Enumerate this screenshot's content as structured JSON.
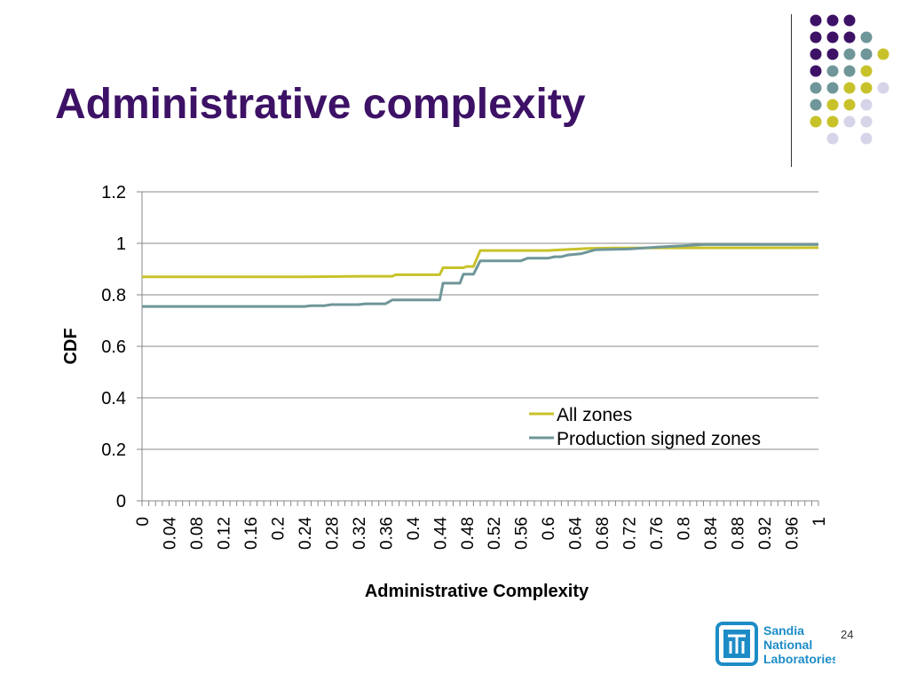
{
  "slide": {
    "title": "Administrative complexity",
    "page_number": "24",
    "logo_lines": [
      "Sandia",
      "National",
      "Laboratories"
    ]
  },
  "colors": {
    "title": "#3d1266",
    "all_zones": "#c8c22a",
    "production": "#6f9699",
    "grid": "#888888",
    "dot_purple": "#3d1266",
    "dot_teal": "#6f9699",
    "dot_yellow": "#c8c22a",
    "dot_lavender": "#d6d4e8",
    "logo_blue": "#1d8cc6"
  },
  "dot_grid": [
    [
      "purple",
      "purple",
      "purple",
      null,
      null
    ],
    [
      "purple",
      "purple",
      "purple",
      "teal",
      null
    ],
    [
      "purple",
      "purple",
      "teal",
      "teal",
      "yellow"
    ],
    [
      "purple",
      "teal",
      "teal",
      "yellow",
      null
    ],
    [
      "teal",
      "teal",
      "yellow",
      "yellow",
      "lavender"
    ],
    [
      "teal",
      "yellow",
      "yellow",
      "lavender",
      null
    ],
    [
      "yellow",
      "yellow",
      "lavender",
      "lavender",
      null
    ],
    [
      null,
      "lavender",
      null,
      "lavender",
      null
    ]
  ],
  "chart_data": {
    "type": "line",
    "xlabel": "Administrative Complexity",
    "ylabel": "CDF",
    "ylim": [
      0,
      1.2
    ],
    "yticks": [
      "0",
      "0.2",
      "0.4",
      "0.6",
      "0.8",
      "1",
      "1.2"
    ],
    "xtick_labels": [
      "0",
      "0.04",
      "0.08",
      "0.12",
      "0.16",
      "0.2",
      "0.24",
      "0.28",
      "0.32",
      "0.36",
      "0.4",
      "0.44",
      "0.48",
      "0.52",
      "0.56",
      "0.6",
      "0.64",
      "0.68",
      "0.72",
      "0.76",
      "0.8",
      "0.84",
      "0.88",
      "0.92",
      "0.96",
      "1"
    ],
    "grid": true,
    "legend_position": "lower-right",
    "series": [
      {
        "name": "All zones",
        "color": "#c8c22a",
        "x": [
          0,
          0.24,
          0.32,
          0.37,
          0.375,
          0.44,
          0.445,
          0.475,
          0.48,
          0.49,
          0.5,
          0.6,
          0.62,
          0.66,
          0.7,
          1
        ],
        "y": [
          0.87,
          0.87,
          0.872,
          0.872,
          0.878,
          0.878,
          0.905,
          0.905,
          0.91,
          0.91,
          0.972,
          0.972,
          0.975,
          0.98,
          0.982,
          0.983
        ]
      },
      {
        "name": "Production signed zones",
        "color": "#6f9699",
        "x": [
          0,
          0.24,
          0.25,
          0.27,
          0.28,
          0.32,
          0.33,
          0.36,
          0.37,
          0.44,
          0.445,
          0.47,
          0.475,
          0.49,
          0.5,
          0.56,
          0.57,
          0.6,
          0.61,
          0.62,
          0.63,
          0.65,
          0.67,
          0.72,
          0.76,
          0.78,
          0.83,
          1
        ],
        "y": [
          0.755,
          0.755,
          0.758,
          0.758,
          0.762,
          0.762,
          0.765,
          0.765,
          0.78,
          0.78,
          0.845,
          0.845,
          0.88,
          0.88,
          0.932,
          0.932,
          0.942,
          0.942,
          0.948,
          0.948,
          0.955,
          0.96,
          0.975,
          0.978,
          0.985,
          0.988,
          0.995,
          0.995
        ]
      }
    ]
  }
}
